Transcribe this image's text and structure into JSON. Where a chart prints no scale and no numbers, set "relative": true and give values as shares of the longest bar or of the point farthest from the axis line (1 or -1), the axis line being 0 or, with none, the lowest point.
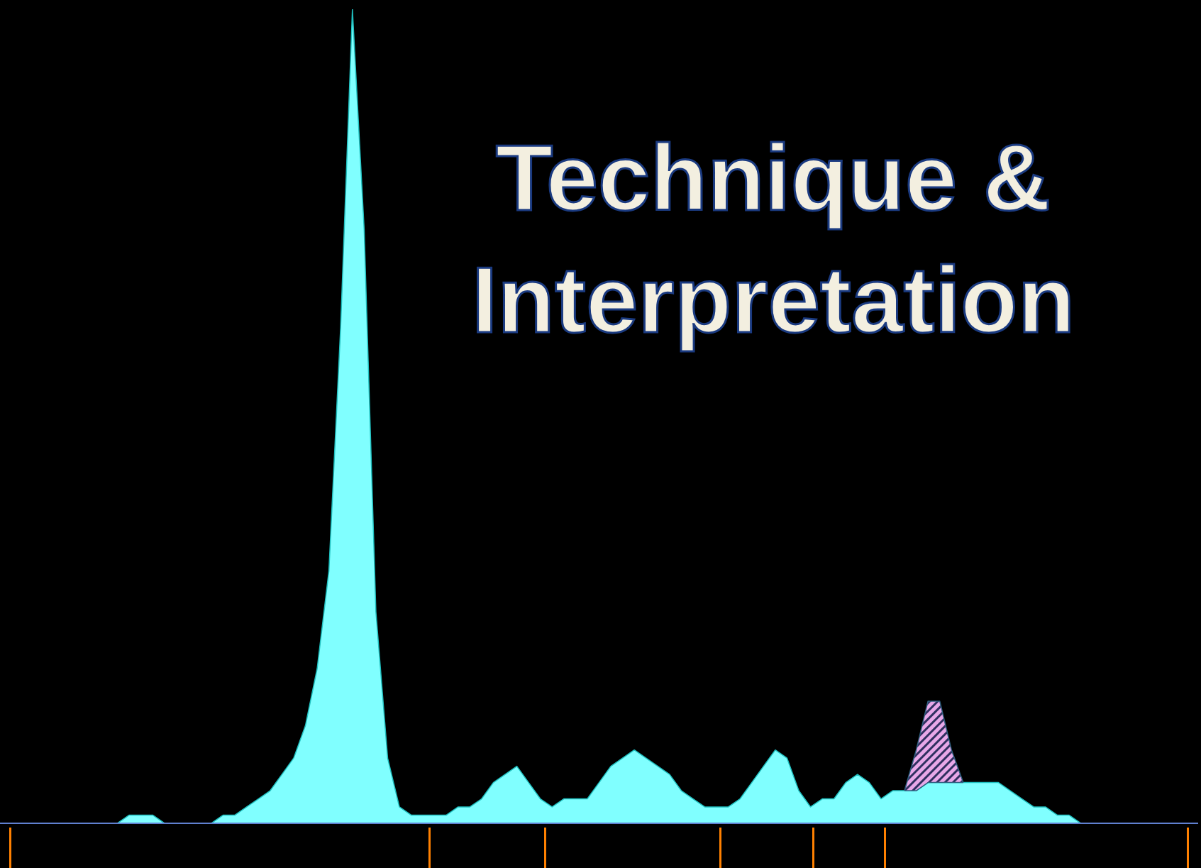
{
  "chart_data": {
    "type": "area",
    "title": "Technique & Interpretation",
    "relative": true,
    "stacked": true,
    "tick_labels": false,
    "categories": [
      null,
      null,
      null,
      null,
      null,
      null,
      null,
      null,
      null,
      null,
      null,
      null,
      null,
      null,
      null,
      null,
      null,
      null,
      null,
      null,
      null,
      null,
      null,
      null,
      null,
      null,
      null,
      null,
      null,
      null,
      null,
      null,
      null,
      null,
      null,
      null,
      null,
      null,
      null,
      null,
      null,
      null,
      null,
      null,
      null,
      null,
      null,
      null,
      null,
      null,
      null,
      null,
      null,
      null,
      null,
      null,
      null,
      null,
      null,
      null,
      null,
      null,
      null,
      null,
      null,
      null,
      null,
      null,
      null,
      null,
      null,
      null,
      null,
      null,
      null,
      null,
      null,
      null,
      null,
      null,
      null,
      null,
      null,
      null,
      null,
      null,
      null,
      null,
      null,
      null,
      null,
      null,
      null,
      null,
      null,
      null,
      null,
      null,
      null,
      null,
      null,
      null,
      null
    ],
    "series": [
      {
        "color": "#80ffff",
        "values": [
          0,
          0,
          0,
          0,
          0,
          0,
          0,
          0,
          0,
          0,
          0,
          0.01,
          0.01,
          0.01,
          0,
          0,
          0,
          0,
          0,
          0.01,
          0.01,
          0.02,
          0.03,
          0.04,
          0.06,
          0.08,
          0.12,
          0.19,
          0.31,
          0.61,
          1,
          0.73,
          0.26,
          0.08,
          0.02,
          0.01,
          0.01,
          0.01,
          0.01,
          0.02,
          0.02,
          0.03,
          0.05,
          0.06,
          0.07,
          0.05,
          0.03,
          0.02,
          0.03,
          0.03,
          0.03,
          0.05,
          0.07,
          0.08,
          0.09,
          0.08,
          0.07,
          0.06,
          0.04,
          0.03,
          0.02,
          0.02,
          0.02,
          0.03,
          0.05,
          0.07,
          0.09,
          0.08,
          0.04,
          0.02,
          0.03,
          0.03,
          0.05,
          0.06,
          0.05,
          0.03,
          0.04,
          0.04,
          0.04,
          0.05,
          0.05,
          0.05,
          0.05,
          0.05,
          0.05,
          0.05,
          0.04,
          0.03,
          0.02,
          0.02,
          0.01,
          0.01,
          0,
          0,
          0,
          0,
          0,
          0,
          0,
          0,
          0,
          0,
          0
        ]
      },
      {
        "color": "#e8a8e8",
        "values": [
          null,
          null,
          null,
          null,
          null,
          null,
          null,
          null,
          null,
          null,
          null,
          null,
          null,
          null,
          null,
          null,
          null,
          null,
          null,
          null,
          null,
          null,
          null,
          null,
          null,
          null,
          null,
          null,
          null,
          null,
          null,
          null,
          null,
          null,
          null,
          null,
          null,
          null,
          null,
          null,
          null,
          null,
          null,
          null,
          null,
          null,
          null,
          null,
          null,
          null,
          null,
          null,
          null,
          null,
          null,
          null,
          null,
          null,
          null,
          null,
          null,
          null,
          null,
          null,
          null,
          null,
          null,
          null,
          null,
          null,
          null,
          null,
          null,
          null,
          null,
          null,
          null,
          0,
          0.05,
          0.1,
          0.1,
          0.04,
          0,
          null,
          null,
          null,
          null,
          null,
          null,
          null,
          null,
          null,
          null,
          null,
          null,
          null,
          null,
          null,
          null,
          null,
          null,
          null,
          null
        ]
      }
    ]
  }
}
